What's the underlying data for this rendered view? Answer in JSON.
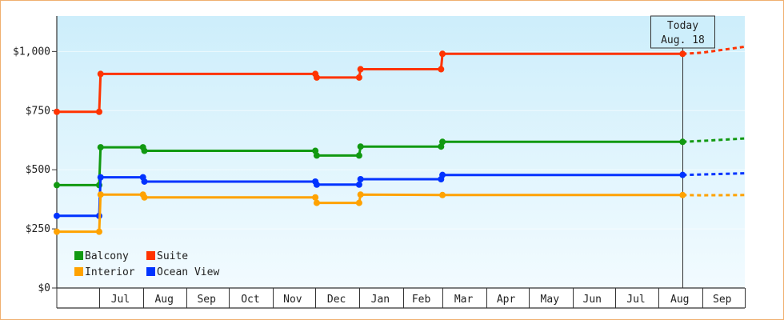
{
  "chart_data": {
    "type": "line",
    "step": true,
    "title": "",
    "xlabel": "",
    "ylabel": "",
    "ylim": [
      0,
      1150
    ],
    "yticks": [
      0,
      250,
      500,
      750,
      1000
    ],
    "ytick_labels": [
      "$0",
      "$250",
      "$500",
      "$750",
      "$1,000"
    ],
    "xlim": [
      "2024-06-01",
      "2025-10-01"
    ],
    "month_labels": [
      {
        "date": "2024-06-15",
        "label": ""
      },
      {
        "date": "2024-07-16",
        "label": "Jul"
      },
      {
        "date": "2024-08-16",
        "label": "Aug"
      },
      {
        "date": "2024-09-15",
        "label": "Sep"
      },
      {
        "date": "2024-10-16",
        "label": "Oct"
      },
      {
        "date": "2024-11-15",
        "label": "Nov"
      },
      {
        "date": "2024-12-16",
        "label": "Dec"
      },
      {
        "date": "2025-01-16",
        "label": "Jan"
      },
      {
        "date": "2025-02-14",
        "label": "Feb"
      },
      {
        "date": "2025-03-16",
        "label": "Mar"
      },
      {
        "date": "2025-04-15",
        "label": "Apr"
      },
      {
        "date": "2025-05-16",
        "label": "May"
      },
      {
        "date": "2025-06-15",
        "label": "Jun"
      },
      {
        "date": "2025-07-16",
        "label": "Jul"
      },
      {
        "date": "2025-08-16",
        "label": "Aug"
      },
      {
        "date": "2025-09-15",
        "label": "Sep"
      }
    ],
    "month_boundaries": [
      "2024-07-01",
      "2024-08-01",
      "2024-09-01",
      "2024-10-01",
      "2024-11-01",
      "2024-12-01",
      "2025-01-01",
      "2025-02-01",
      "2025-03-01",
      "2025-04-01",
      "2025-05-01",
      "2025-06-01",
      "2025-07-01",
      "2025-08-01",
      "2025-09-01",
      "2025-10-01"
    ],
    "today": {
      "date": "2025-08-18",
      "line1": "Today",
      "line2": "Aug. 18"
    },
    "forecast_end": "2025-10-01",
    "legend_placement": "bottom-left",
    "series": [
      {
        "name": "Suite",
        "color": "#ff3300",
        "points": [
          [
            "2024-06-01",
            745
          ],
          [
            "2024-07-01",
            745
          ],
          [
            "2024-07-02",
            905
          ],
          [
            "2024-12-01",
            905
          ],
          [
            "2024-12-02",
            890
          ],
          [
            "2025-01-01",
            890
          ],
          [
            "2025-01-02",
            925
          ],
          [
            "2025-02-28",
            925
          ],
          [
            "2025-03-01",
            990
          ],
          [
            "2025-08-18",
            990
          ]
        ],
        "markers": [
          "2024-06-01",
          "2024-07-01",
          "2024-07-02",
          "2024-12-01",
          "2024-12-02",
          "2025-01-01",
          "2025-01-02",
          "2025-02-28",
          "2025-03-01",
          "2025-08-18"
        ],
        "forecast": [
          [
            "2025-08-18",
            990
          ],
          [
            "2025-09-01",
            995
          ],
          [
            "2025-10-01",
            1020
          ]
        ]
      },
      {
        "name": "Balcony",
        "color": "#119911",
        "points": [
          [
            "2024-06-01",
            435
          ],
          [
            "2024-07-01",
            435
          ],
          [
            "2024-07-02",
            595
          ],
          [
            "2024-08-01",
            595
          ],
          [
            "2024-08-02",
            580
          ],
          [
            "2024-12-01",
            580
          ],
          [
            "2024-12-02",
            560
          ],
          [
            "2025-01-01",
            560
          ],
          [
            "2025-01-02",
            598
          ],
          [
            "2025-02-28",
            598
          ],
          [
            "2025-03-01",
            618
          ],
          [
            "2025-08-18",
            618
          ]
        ],
        "markers": [
          "2024-06-01",
          "2024-07-01",
          "2024-07-02",
          "2024-08-01",
          "2024-08-02",
          "2024-12-01",
          "2024-12-02",
          "2025-01-01",
          "2025-01-02",
          "2025-02-28",
          "2025-03-01",
          "2025-08-18"
        ],
        "forecast": [
          [
            "2025-08-18",
            618
          ],
          [
            "2025-09-01",
            622
          ],
          [
            "2025-10-01",
            632
          ]
        ]
      },
      {
        "name": "Ocean View",
        "color": "#0033ff",
        "points": [
          [
            "2024-06-01",
            305
          ],
          [
            "2024-07-01",
            305
          ],
          [
            "2024-07-02",
            468
          ],
          [
            "2024-08-01",
            468
          ],
          [
            "2024-08-02",
            450
          ],
          [
            "2024-12-01",
            450
          ],
          [
            "2024-12-02",
            437
          ],
          [
            "2025-01-01",
            437
          ],
          [
            "2025-01-02",
            460
          ],
          [
            "2025-02-28",
            460
          ],
          [
            "2025-03-01",
            478
          ],
          [
            "2025-08-18",
            478
          ]
        ],
        "markers": [
          "2024-06-01",
          "2024-07-01",
          "2024-07-02",
          "2024-08-01",
          "2024-08-02",
          "2024-12-01",
          "2024-12-02",
          "2025-01-01",
          "2025-01-02",
          "2025-02-28",
          "2025-03-01",
          "2025-08-18"
        ],
        "forecast": [
          [
            "2025-08-18",
            478
          ],
          [
            "2025-09-01",
            480
          ],
          [
            "2025-10-01",
            485
          ]
        ]
      },
      {
        "name": "Interior",
        "color": "#ffa200",
        "points": [
          [
            "2024-06-01",
            238
          ],
          [
            "2024-07-01",
            238
          ],
          [
            "2024-07-02",
            395
          ],
          [
            "2024-08-01",
            395
          ],
          [
            "2024-08-02",
            383
          ],
          [
            "2024-12-01",
            383
          ],
          [
            "2024-12-02",
            360
          ],
          [
            "2025-01-01",
            360
          ],
          [
            "2025-01-02",
            395
          ],
          [
            "2025-03-01",
            393
          ],
          [
            "2025-08-18",
            393
          ]
        ],
        "markers": [
          "2024-06-01",
          "2024-07-01",
          "2024-07-02",
          "2024-08-01",
          "2024-08-02",
          "2024-12-01",
          "2024-12-02",
          "2025-01-01",
          "2025-01-02",
          "2025-03-01",
          "2025-08-18"
        ],
        "forecast": [
          [
            "2025-08-18",
            393
          ],
          [
            "2025-09-01",
            392
          ],
          [
            "2025-10-01",
            393
          ]
        ]
      }
    ],
    "legend": [
      {
        "name": "Balcony",
        "color": "#119911"
      },
      {
        "name": "Suite",
        "color": "#ff3300"
      },
      {
        "name": "Interior",
        "color": "#ffa200"
      },
      {
        "name": "Ocean View",
        "color": "#0033ff"
      }
    ]
  }
}
